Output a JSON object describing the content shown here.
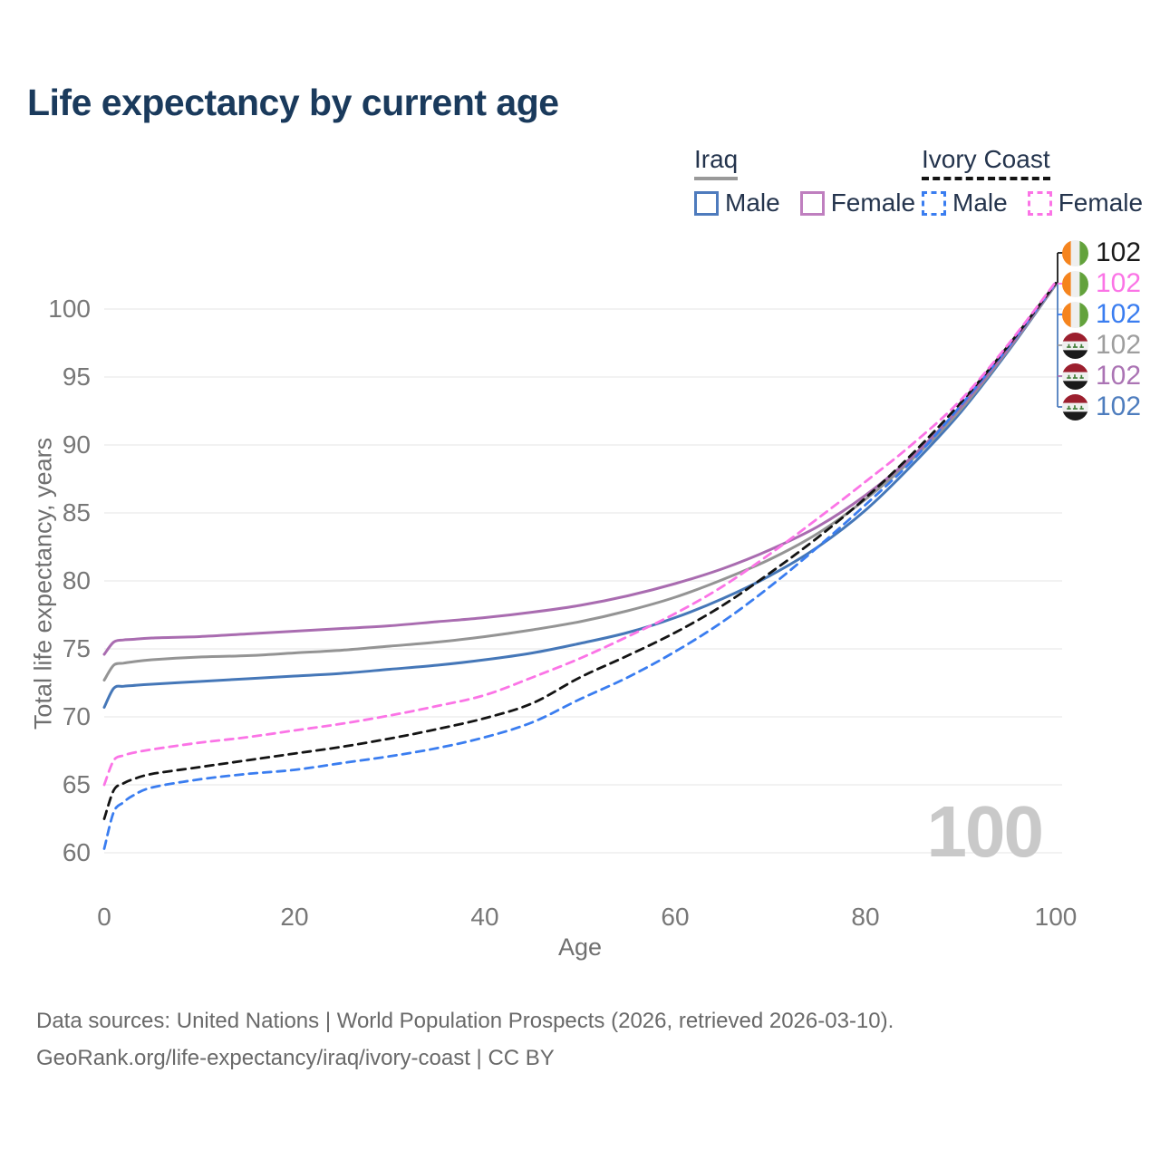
{
  "title": "Life expectancy by current age",
  "watermark": "100",
  "footer": {
    "line1": "Data sources: United Nations | World Population Prospects (2026, retrieved 2026-03-10).",
    "line2": "GeoRank.org/life-expectancy/iraq/ivory-coast | CC BY"
  },
  "legend": {
    "groups": [
      {
        "name": "Iraq",
        "underline_style": "solid",
        "underline_color": "#999999",
        "items": [
          {
            "label": "Male",
            "color": "#4e7bbd",
            "dashed": false
          },
          {
            "label": "Female",
            "color": "#bf7fbf",
            "dashed": false
          }
        ]
      },
      {
        "name": "Ivory Coast",
        "underline_style": "dashed",
        "underline_color": "#141414",
        "items": [
          {
            "label": "Male",
            "color": "#3a7df0",
            "dashed": true
          },
          {
            "label": "Female",
            "color": "#fb74e6",
            "dashed": true
          }
        ]
      }
    ]
  },
  "chart_data": {
    "type": "line",
    "title": "Life expectancy by current age",
    "xlabel": "Age",
    "ylabel": "Total life expectancy, years",
    "x_ticks": [
      0,
      20,
      40,
      60,
      80,
      100
    ],
    "y_ticks": [
      100,
      95,
      90,
      85,
      80,
      75,
      70,
      65,
      60
    ],
    "xlim": [
      0,
      100
    ],
    "ylim": [
      60,
      102
    ],
    "grid": "horizontal-only",
    "legend_position": "top-right",
    "x": [
      0,
      1,
      2,
      3,
      5,
      10,
      15,
      20,
      25,
      30,
      35,
      40,
      45,
      50,
      55,
      60,
      65,
      70,
      75,
      80,
      85,
      90,
      95,
      100
    ],
    "series": [
      {
        "id": "iraq-male",
        "country": "Iraq",
        "sex": "Male",
        "color": "#4577b8",
        "dashed": false,
        "end_value": 102,
        "values": [
          70.7,
          72.1,
          72.25,
          72.3,
          72.4,
          72.6,
          72.8,
          73.0,
          73.2,
          73.5,
          73.8,
          74.2,
          74.7,
          75.4,
          76.2,
          77.3,
          78.7,
          80.4,
          82.5,
          85.2,
          88.6,
          92.4,
          96.9,
          101.8
        ]
      },
      {
        "id": "iraq-both",
        "country": "Iraq",
        "sex": "Both sexes",
        "color": "#949494",
        "dashed": false,
        "end_value": 102,
        "values": [
          72.7,
          73.8,
          73.95,
          74.05,
          74.2,
          74.4,
          74.5,
          74.7,
          74.9,
          75.2,
          75.5,
          75.9,
          76.4,
          77.0,
          77.8,
          78.8,
          80.1,
          81.6,
          83.5,
          86.0,
          89.0,
          92.6,
          97.0,
          101.8
        ]
      },
      {
        "id": "iraq-female",
        "country": "Iraq",
        "sex": "Female",
        "color": "#a96cb0",
        "dashed": false,
        "end_value": 102,
        "values": [
          74.6,
          75.5,
          75.65,
          75.7,
          75.8,
          75.9,
          76.1,
          76.3,
          76.5,
          76.7,
          77.0,
          77.3,
          77.7,
          78.2,
          78.9,
          79.8,
          80.9,
          82.3,
          84.0,
          86.3,
          89.2,
          92.8,
          97.1,
          101.9
        ]
      },
      {
        "id": "ivory-coast-male",
        "country": "Ivory Coast",
        "sex": "Male",
        "color": "#3a7df0",
        "dashed": true,
        "end_value": 102,
        "values": [
          60.3,
          63.0,
          63.7,
          64.2,
          64.8,
          65.4,
          65.8,
          66.1,
          66.6,
          67.1,
          67.7,
          68.5,
          69.6,
          71.3,
          72.9,
          74.8,
          77.0,
          79.6,
          82.5,
          85.6,
          88.9,
          92.9,
          97.2,
          101.9
        ]
      },
      {
        "id": "ivory-coast-both",
        "country": "Ivory Coast",
        "sex": "Both sexes",
        "color": "#141414",
        "dashed": true,
        "end_value": 102,
        "values": [
          62.5,
          64.6,
          65.1,
          65.4,
          65.8,
          66.3,
          66.8,
          67.3,
          67.8,
          68.4,
          69.1,
          69.9,
          71.0,
          72.9,
          74.5,
          76.2,
          78.2,
          80.6,
          83.2,
          86.1,
          89.4,
          93.1,
          97.3,
          101.9
        ]
      },
      {
        "id": "ivory-coast-female",
        "country": "Ivory Coast",
        "sex": "Female",
        "color": "#fb74e6",
        "dashed": true,
        "end_value": 102,
        "values": [
          65.0,
          66.8,
          67.15,
          67.35,
          67.6,
          68.1,
          68.5,
          69.0,
          69.5,
          70.1,
          70.8,
          71.6,
          72.9,
          74.3,
          75.9,
          77.6,
          79.6,
          82.0,
          84.6,
          87.3,
          90.1,
          93.3,
          97.4,
          102.0
        ]
      }
    ]
  },
  "right_labels": [
    {
      "flag": "ivory-coast",
      "series": "ivory-coast-both",
      "value": "102",
      "color": "#1a1a1a"
    },
    {
      "flag": "ivory-coast",
      "series": "ivory-coast-female",
      "value": "102",
      "color": "#fb74e6"
    },
    {
      "flag": "ivory-coast",
      "series": "ivory-coast-male",
      "value": "102",
      "color": "#3a7df0"
    },
    {
      "flag": "iraq",
      "series": "iraq-both",
      "value": "102",
      "color": "#9e9e9e"
    },
    {
      "flag": "iraq",
      "series": "iraq-female",
      "value": "102",
      "color": "#ab74b4"
    },
    {
      "flag": "iraq",
      "series": "iraq-male",
      "value": "102",
      "color": "#4e7dbe"
    }
  ],
  "colors": {
    "title": "#1a3a5c",
    "axis_text": "#777777",
    "gridline": "#eaeaea",
    "watermark": "#c9c9c9",
    "footer_text": "#696969"
  }
}
